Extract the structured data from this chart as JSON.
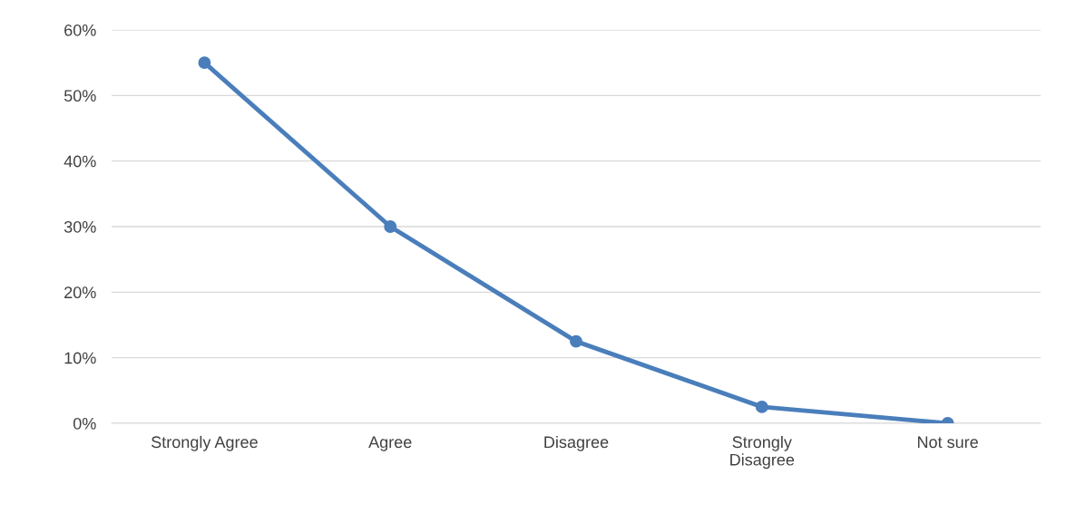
{
  "chart_data": {
    "type": "line",
    "categories": [
      "Strongly Agree",
      "Agree",
      "Disagree",
      "Strongly\nDisagree",
      "Not sure"
    ],
    "series": [
      {
        "color": "#4a7ebb",
        "values": [
          55,
          30,
          12.5,
          2.5,
          0
        ]
      }
    ],
    "ylim": [
      0,
      60
    ],
    "yticks": [
      {
        "value": 0,
        "label": "0%"
      },
      {
        "value": 10,
        "label": "10%"
      },
      {
        "value": 20,
        "label": "20%"
      },
      {
        "value": 30,
        "label": "30%"
      },
      {
        "value": 40,
        "label": "40%"
      },
      {
        "value": 50,
        "label": "50%"
      },
      {
        "value": 60,
        "label": "60%"
      }
    ],
    "grid": "y",
    "marker": "circle",
    "line_style": "solid"
  }
}
